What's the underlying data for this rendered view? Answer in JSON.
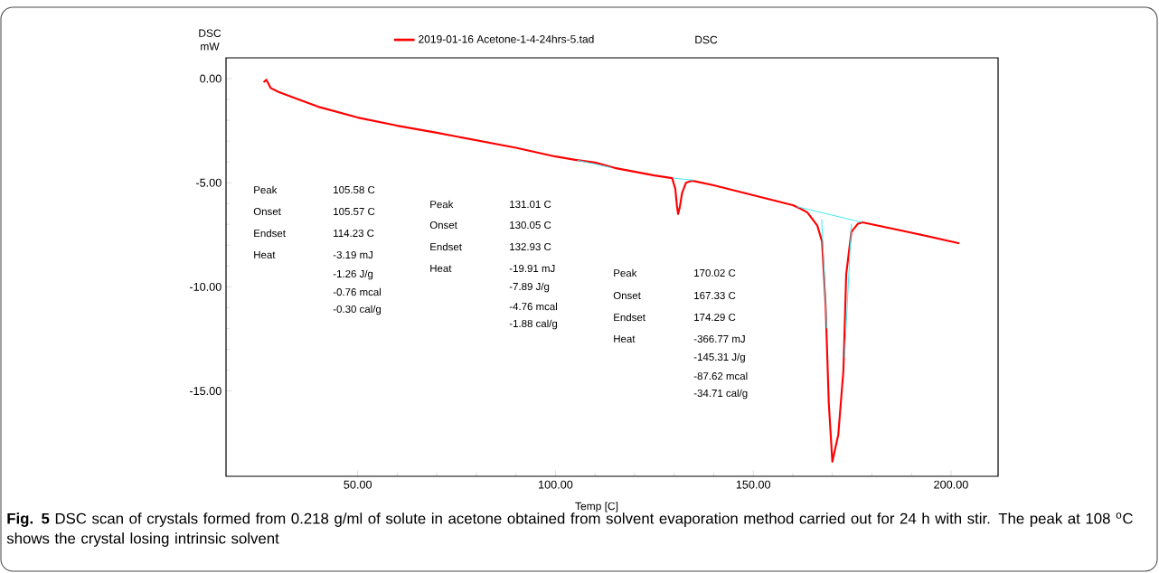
{
  "chart_data": {
    "type": "line",
    "xlabel": "Temp   [C]",
    "ylabel": "DSC mW",
    "legend": "top",
    "line_style": "solid",
    "xlim": [
      16.7,
      211.9
    ],
    "ylim": [
      -19.1,
      1.0
    ],
    "xticks": [
      {
        "value": 50,
        "label": "50.00"
      },
      {
        "value": 100,
        "label": "100.00"
      },
      {
        "value": 150,
        "label": "150.00"
      },
      {
        "value": 200,
        "label": "200.00"
      }
    ],
    "yticks": [
      {
        "value": 0,
        "label": "0.00"
      },
      {
        "value": -5,
        "label": "-5.00"
      },
      {
        "value": -10,
        "label": "-10.00"
      },
      {
        "value": -15,
        "label": "-15.00"
      }
    ],
    "series": [
      {
        "name": "2019-01-16 Acetone-1-4-24hrs-5.tad",
        "color": "#ff0000",
        "x": [
          26.2,
          26.9,
          28,
          30,
          35,
          40,
          50,
          60,
          70,
          80,
          90,
          100,
          105,
          110,
          115,
          125,
          129.5,
          130.3,
          130.7,
          131.0,
          131.4,
          132.0,
          133.0,
          134.5,
          140,
          150,
          160,
          162,
          163.7,
          166.2,
          167.4,
          168.3,
          169.1,
          170.0,
          171.5,
          172.8,
          173.5,
          174.8,
          176.4,
          177.6,
          190,
          202.1
        ],
        "values": [
          -0.17,
          -0.05,
          -0.45,
          -0.64,
          -1.0,
          -1.35,
          -1.87,
          -2.26,
          -2.6,
          -2.96,
          -3.32,
          -3.74,
          -3.9,
          -4.03,
          -4.29,
          -4.65,
          -4.78,
          -5.3,
          -6.1,
          -6.5,
          -6.2,
          -5.5,
          -5.0,
          -4.9,
          -5.12,
          -5.6,
          -6.08,
          -6.25,
          -6.43,
          -7.06,
          -7.83,
          -10.9,
          -15.6,
          -18.4,
          -17.1,
          -14.0,
          -9.4,
          -7.36,
          -6.98,
          -6.9,
          -7.4,
          -7.91
        ]
      },
      {
        "color": "#33e6f0",
        "x": [
          105.6,
          114.2
        ],
        "values": [
          -3.92,
          -4.28
        ]
      },
      {
        "color": "#33e6f0",
        "x": [
          129.8,
          135.0
        ],
        "values": [
          -4.78,
          -4.88
        ]
      },
      {
        "color": "#33e6f0",
        "x": [
          161.0,
          177.5
        ],
        "values": [
          -6.15,
          -6.9
        ]
      },
      {
        "color": "#33e6f0",
        "x": [
          167.3,
          168.6
        ],
        "values": [
          -6.74,
          -12.0
        ]
      },
      {
        "color": "#33e6f0",
        "x": [
          174.8,
          173.1
        ],
        "values": [
          -6.98,
          -13.4
        ]
      }
    ],
    "annotations": [
      "DSC",
      "Peak",
      "105.58  C",
      "Onset",
      "105.57  C",
      "Endset",
      "114.23  C",
      "Heat",
      "-3.19  mJ",
      "-1.26 J/g",
      "-0.76 mcal",
      "-0.30 cal/g",
      "Peak",
      "131.01  C",
      "Onset",
      "130.05  C",
      "Endset",
      "132.93  C",
      "Heat",
      "-19.91  mJ",
      "-7.89 J/g",
      "-4.76 mcal",
      "-1.88 cal/g",
      "Peak",
      "170.02  C",
      "Onset",
      "167.33  C",
      "Endset",
      "174.29  C",
      "Heat",
      "-366.77  mJ",
      "-145.31  J/g",
      "-87.62  mcal",
      "-34.71  cal/g",
      "**Fig. 5** DSC scan of crystals formed from 0.218 g/ml of solute in acetone obtained from solvent evaporation method carried out for 24 h with stir. The peak at 108 $^{o}$C shows the crystal losing intrinsic solvent"
    ]
  }
}
